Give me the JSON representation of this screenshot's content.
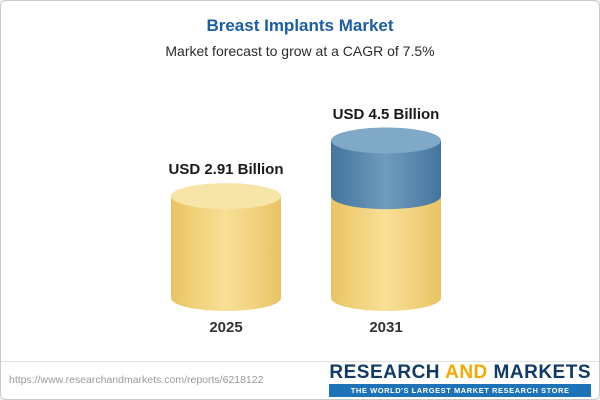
{
  "header": {
    "title": "Breast Implants Market",
    "subtitle": "Market forecast to grow at a CAGR of 7.5%",
    "title_color": "#1B5EA6"
  },
  "chart_data": {
    "type": "bar",
    "variant": "3d-cylinder",
    "unit": "USD Billion",
    "title": "Breast Implants Market",
    "subtitle": "Market forecast to grow at a CAGR of 7.5%",
    "cagr_pct": 7.5,
    "categories": [
      "2025",
      "2031"
    ],
    "values": [
      2.91,
      4.5
    ],
    "value_labels": [
      "USD 2.91 Billion",
      "USD 4.5 Billion"
    ],
    "ylim": [
      0,
      5
    ],
    "grid": false,
    "legend": "none",
    "bars": [
      {
        "category": "2025",
        "total": 2.91,
        "segments": [
          {
            "value": 2.91,
            "color_key": "gold"
          }
        ]
      },
      {
        "category": "2031",
        "total": 4.5,
        "segments": [
          {
            "value": 2.91,
            "color_key": "gold"
          },
          {
            "value": 1.59,
            "color_key": "blue"
          }
        ]
      }
    ],
    "colors": {
      "gold": {
        "body": [
          "#EAC363",
          "#F8E096",
          "#EAC363"
        ],
        "top": "#F7E5A8"
      },
      "blue": {
        "body": [
          "#44759E",
          "#6F9BBC",
          "#44759E"
        ],
        "top": "#7FA9C6"
      }
    }
  },
  "footer": {
    "url": "https://www.researchandmarkets.com/reports/6218122",
    "logo": {
      "word1": "RESEARCH",
      "word2": "AND",
      "word3": "MARKETS",
      "tagline": "THE WORLD'S LARGEST MARKET RESEARCH STORE",
      "navy": "#123A66",
      "orange": "#F5A800",
      "tagline_bg": "#1E72B8"
    }
  }
}
